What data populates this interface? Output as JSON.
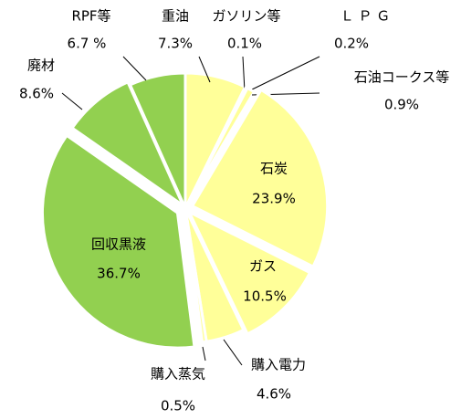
{
  "chart_data": {
    "type": "pie",
    "categories": [
      "重油",
      "ガソリン等",
      "Ｌ Ｐ Ｇ",
      "石油コークス等",
      "石炭",
      "ガス",
      "購入電力",
      "購入蒸気",
      "回収黒液",
      "廃材",
      "RPF等"
    ],
    "values": [
      7.3,
      0.1,
      0.2,
      0.9,
      23.9,
      10.5,
      4.6,
      0.5,
      36.7,
      8.6,
      6.7
    ],
    "value_labels": [
      "7.3%",
      "0.1%",
      "0.2%",
      "0.9%",
      "23.9%",
      "10.5%",
      "4.6%",
      "0.5%",
      "36.7%",
      "8.6%",
      "6.7 %"
    ],
    "colors": [
      "#ffff99",
      "#000000",
      "#000000",
      "#ffff99",
      "#ffff99",
      "#ffff99",
      "#ffff99",
      "#ffff99",
      "#92d050",
      "#92d050",
      "#92d050"
    ]
  }
}
